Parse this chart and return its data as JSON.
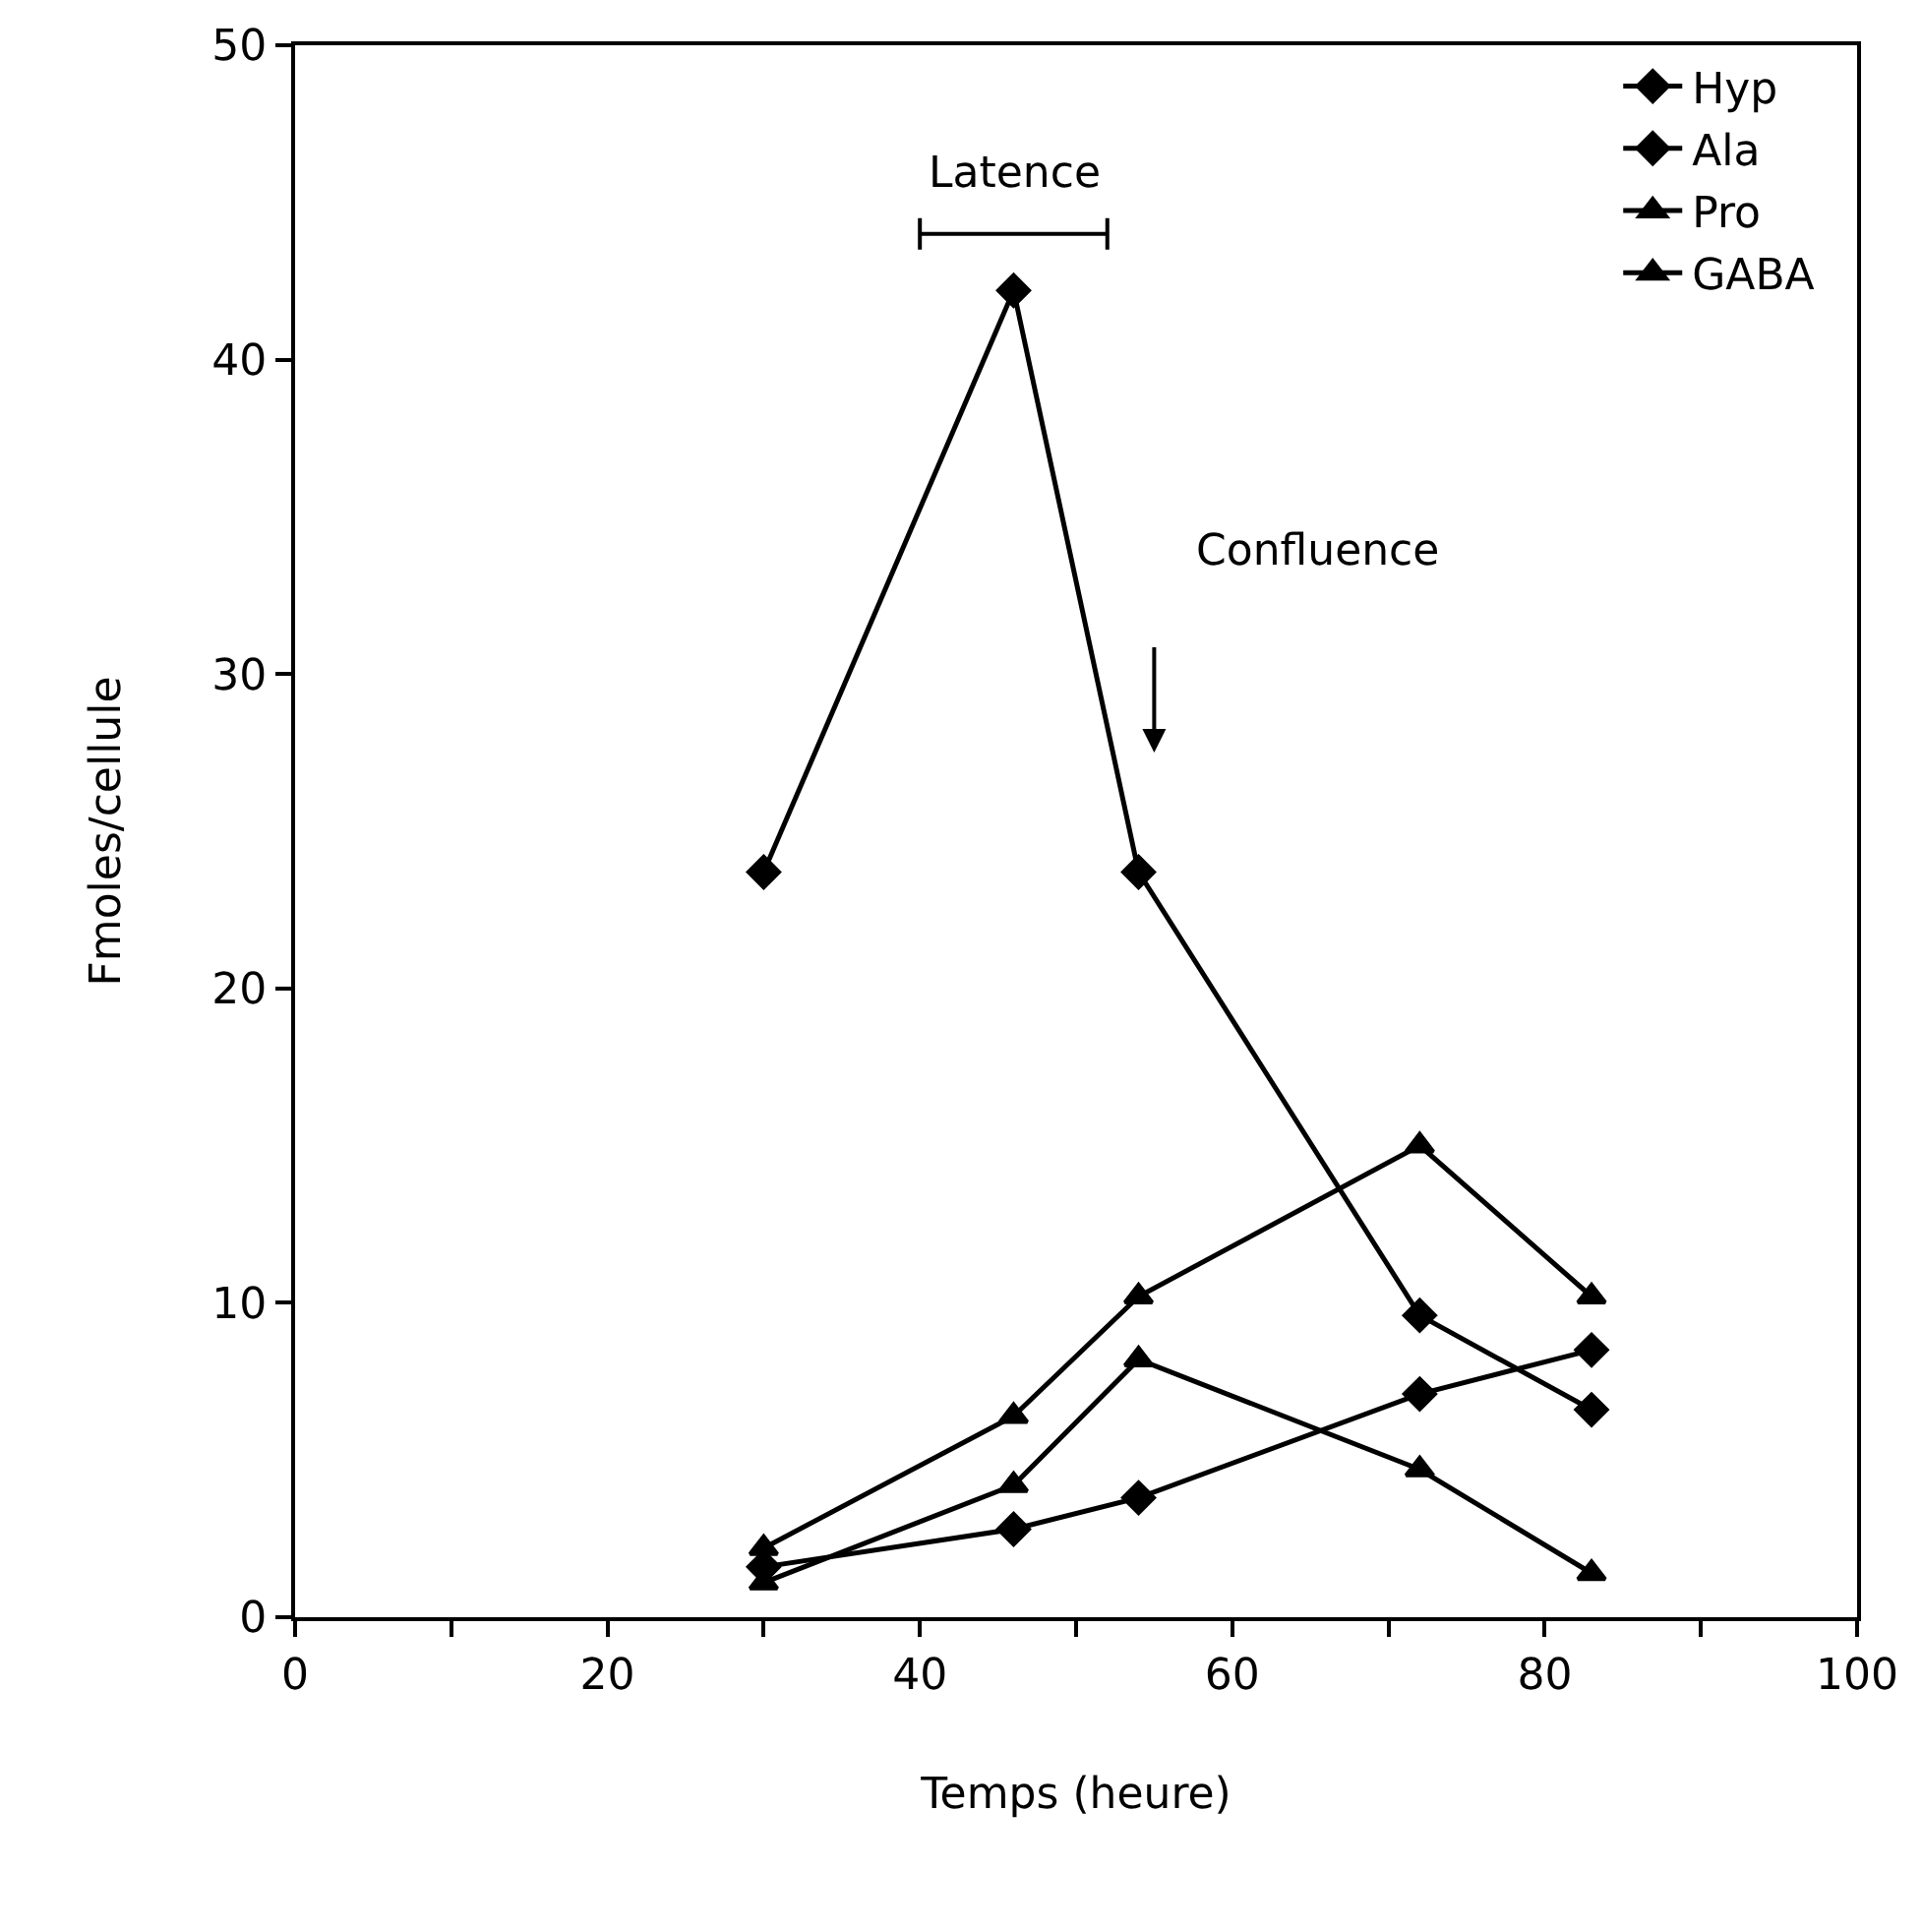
{
  "chart_data": {
    "type": "line",
    "xlabel": "Temps (heure)",
    "ylabel": "Fmoles/cellule",
    "x": [
      30,
      46,
      54,
      72,
      83
    ],
    "series": [
      {
        "name": "Hyp",
        "color": "#000000",
        "marker": "diamond",
        "values": [
          1.6,
          2.8,
          3.8,
          7.1,
          8.5
        ]
      },
      {
        "name": "Ala",
        "color": "#000000",
        "marker": "diamond",
        "values": [
          23.7,
          42.2,
          23.7,
          9.6,
          6.6
        ]
      },
      {
        "name": "Pro",
        "color": "#000000",
        "marker": "triangle",
        "values": [
          2.2,
          6.4,
          10.2,
          15.0,
          10.2
        ]
      },
      {
        "name": "GABA",
        "color": "#000000",
        "marker": "triangle",
        "values": [
          1.1,
          4.2,
          8.2,
          4.7,
          1.4
        ]
      }
    ],
    "xlim": [
      0,
      100
    ],
    "xticks": [
      0,
      {
        "value": 10,
        "label": null
      },
      20,
      {
        "value": 30,
        "label": null
      },
      40,
      {
        "value": 50,
        "label": null
      },
      60,
      {
        "value": 70,
        "label": null
      },
      80,
      {
        "value": 90,
        "label": null
      },
      100
    ],
    "ylim": [
      0,
      50
    ],
    "yticks": [
      0,
      10,
      20,
      30,
      40,
      50
    ],
    "grid": false,
    "legend": "top right",
    "line_style": "solid",
    "annotations": [
      "Latence",
      "Confluence"
    ]
  }
}
